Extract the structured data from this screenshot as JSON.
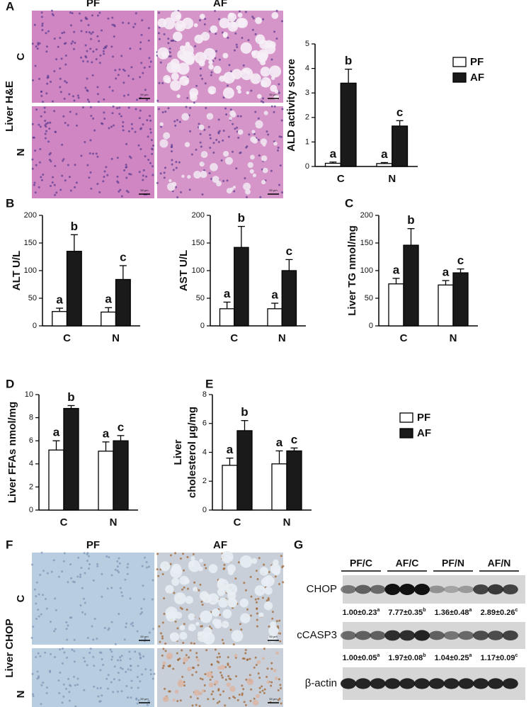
{
  "panels": {
    "letters": [
      "A",
      "B",
      "C",
      "D",
      "E",
      "F",
      "G"
    ],
    "he": {
      "columns": [
        "PF",
        "AF"
      ],
      "rows": [
        "C",
        "N"
      ],
      "label": "Liver H&E",
      "scale_bar": "50 μm"
    },
    "chop_ihc": {
      "columns": [
        "PF",
        "AF"
      ],
      "rows": [
        "C",
        "N"
      ],
      "label": "Liver CHOP",
      "scale_bar": "50 μm"
    },
    "blot": {
      "groups": [
        "PF/C",
        "AF/C",
        "PF/N",
        "AF/N"
      ],
      "rows": [
        {
          "name": "CHOP",
          "quant": [
            {
              "text": "1.00±0.23",
              "letter": "a"
            },
            {
              "text": "7.77±0.35",
              "letter": "b"
            },
            {
              "text": "1.36±0.48",
              "letter": "a"
            },
            {
              "text": "2.89±0.26",
              "letter": "c"
            }
          ]
        },
        {
          "name": "cCASP3",
          "quant": [
            {
              "text": "1.00±0.05",
              "letter": "a"
            },
            {
              "text": "1.97±0.08",
              "letter": "b"
            },
            {
              "text": "1.04±0.25",
              "letter": "a"
            },
            {
              "text": "1.17±0.09",
              "letter": "c"
            }
          ]
        },
        {
          "name": "β-actin"
        }
      ]
    }
  },
  "chart_data": [
    {
      "type": "bar",
      "ylabel": "ALD activity score",
      "categories": [
        "C",
        "N"
      ],
      "ylim": [
        0,
        5
      ],
      "yticks": [
        0,
        1,
        2,
        3,
        4,
        5
      ],
      "legend": "right",
      "series": [
        {
          "name": "PF",
          "color": "#ffffff",
          "values": [
            0.13,
            0.12
          ],
          "errors": [
            0.05,
            0.04
          ],
          "annotations": [
            "a",
            "a"
          ]
        },
        {
          "name": "AF",
          "color": "#1a1a1a",
          "values": [
            3.4,
            1.65
          ],
          "errors": [
            0.57,
            0.22
          ],
          "annotations": [
            "b",
            "c"
          ]
        }
      ]
    },
    {
      "type": "bar",
      "ylabel": "ALT U/L",
      "categories": [
        "C",
        "N"
      ],
      "ylim": [
        0,
        200
      ],
      "yticks": [
        0,
        50,
        100,
        150,
        200
      ],
      "series": [
        {
          "name": "PF",
          "color": "#ffffff",
          "values": [
            26,
            25
          ],
          "errors": [
            6,
            8
          ],
          "annotations": [
            "a",
            "a"
          ]
        },
        {
          "name": "AF",
          "color": "#1a1a1a",
          "values": [
            135,
            84
          ],
          "errors": [
            30,
            25
          ],
          "annotations": [
            "b",
            "c"
          ]
        }
      ]
    },
    {
      "type": "bar",
      "ylabel": "AST U/L",
      "categories": [
        "C",
        "N"
      ],
      "ylim": [
        0,
        200
      ],
      "yticks": [
        0,
        50,
        100,
        150,
        200
      ],
      "series": [
        {
          "name": "PF",
          "color": "#ffffff",
          "values": [
            31,
            31
          ],
          "errors": [
            12,
            10
          ],
          "annotations": [
            "a",
            "a"
          ]
        },
        {
          "name": "AF",
          "color": "#1a1a1a",
          "values": [
            142,
            100
          ],
          "errors": [
            38,
            20
          ],
          "annotations": [
            "b",
            "c"
          ]
        }
      ]
    },
    {
      "type": "bar",
      "ylabel": "Liver TG nmol/mg",
      "categories": [
        "C",
        "N"
      ],
      "ylim": [
        0,
        200
      ],
      "yticks": [
        0,
        50,
        100,
        150,
        200
      ],
      "series": [
        {
          "name": "PF",
          "color": "#ffffff",
          "values": [
            76,
            74
          ],
          "errors": [
            10,
            8
          ],
          "annotations": [
            "a",
            "a"
          ]
        },
        {
          "name": "AF",
          "color": "#1a1a1a",
          "values": [
            146,
            96
          ],
          "errors": [
            30,
            7
          ],
          "annotations": [
            "b",
            "c"
          ]
        }
      ]
    },
    {
      "type": "bar",
      "ylabel": "Liver FFAs nmol/mg",
      "categories": [
        "C",
        "N"
      ],
      "ylim": [
        0,
        10
      ],
      "yticks": [
        0,
        2,
        4,
        6,
        8,
        10
      ],
      "series": [
        {
          "name": "PF",
          "color": "#ffffff",
          "values": [
            5.2,
            5.1
          ],
          "errors": [
            0.8,
            0.8
          ],
          "annotations": [
            "a",
            "a"
          ]
        },
        {
          "name": "AF",
          "color": "#1a1a1a",
          "values": [
            8.8,
            6.0
          ],
          "errors": [
            0.25,
            0.45
          ],
          "annotations": [
            "b",
            "c"
          ]
        }
      ]
    },
    {
      "type": "bar",
      "ylabel": [
        "Liver",
        "cholesterol μg/mg"
      ],
      "categories": [
        "C",
        "N"
      ],
      "ylim": [
        0,
        8
      ],
      "yticks": [
        0,
        2,
        4,
        6,
        8
      ],
      "legend": "right",
      "series": [
        {
          "name": "PF",
          "color": "#ffffff",
          "values": [
            3.1,
            3.2
          ],
          "errors": [
            0.5,
            0.9
          ],
          "annotations": [
            "a",
            "a"
          ]
        },
        {
          "name": "AF",
          "color": "#1a1a1a",
          "values": [
            5.5,
            4.1
          ],
          "errors": [
            0.7,
            0.2
          ],
          "annotations": [
            "b",
            "c"
          ]
        }
      ]
    }
  ]
}
